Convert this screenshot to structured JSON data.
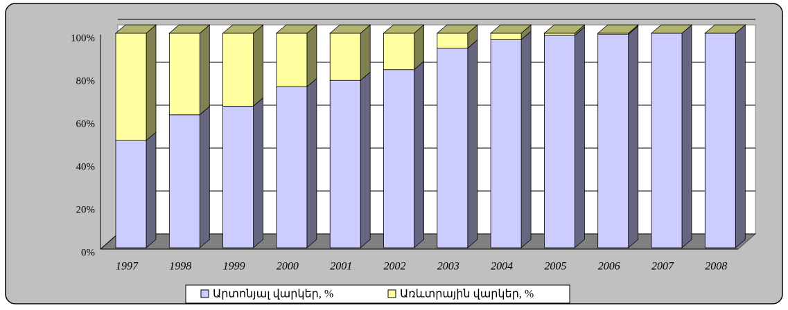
{
  "chart_data": {
    "type": "bar",
    "stacked": true,
    "categories": [
      "1997",
      "1998",
      "1999",
      "2000",
      "2001",
      "2002",
      "2003",
      "2004",
      "2005",
      "2006",
      "2007",
      "2008"
    ],
    "series": [
      {
        "name": "Արտոնյալ վարկեր, %",
        "color": "#ccccff",
        "values": [
          50,
          62,
          66,
          75,
          78,
          83,
          93,
          97,
          99,
          99.5,
          100,
          100
        ]
      },
      {
        "name": "Առևտրային վարկեր, %",
        "color": "#ffffa0",
        "values": [
          50,
          38,
          34,
          25,
          22,
          17,
          7,
          3,
          1,
          0.5,
          0,
          0
        ]
      }
    ],
    "ylim": [
      0,
      100
    ],
    "yticks": [
      {
        "value": 0,
        "label": "0%"
      },
      {
        "value": 20,
        "label": "20%"
      },
      {
        "value": 40,
        "label": "40%"
      },
      {
        "value": 60,
        "label": "60%"
      },
      {
        "value": 80,
        "label": "80%"
      },
      {
        "value": 100,
        "label": "100%"
      }
    ],
    "grid": true,
    "legend": "bottom"
  }
}
